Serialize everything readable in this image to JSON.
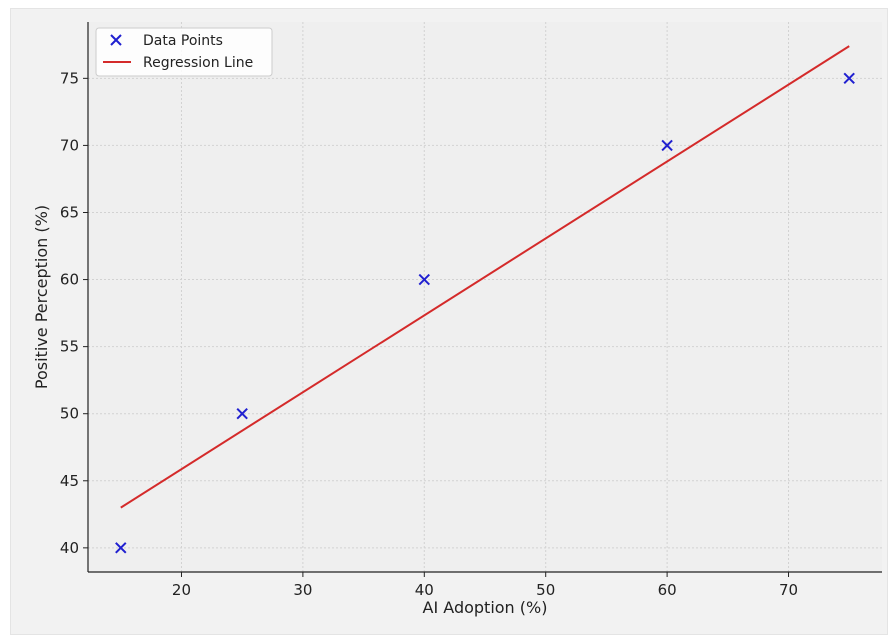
{
  "chart_data": {
    "type": "scatter",
    "title": "",
    "xlabel": "AI Adoption (%)",
    "ylabel": "Positive Perception (%)",
    "xlim": [
      12.3,
      77.7
    ],
    "ylim": [
      38.2,
      79.2
    ],
    "xticks": [
      20,
      30,
      40,
      50,
      60,
      70
    ],
    "yticks": [
      40,
      45,
      50,
      55,
      60,
      65,
      70,
      75
    ],
    "grid": true,
    "legend_position": "top-left",
    "series": [
      {
        "name": "Data Points",
        "kind": "scatter",
        "marker": "x",
        "color": "#2020d0",
        "x": [
          15,
          25,
          40,
          60,
          75
        ],
        "y": [
          40,
          50,
          60,
          70,
          75
        ]
      },
      {
        "name": "Regression Line",
        "kind": "line",
        "color": "#d42a2a",
        "x": [
          15,
          75
        ],
        "y": [
          43.0,
          77.4
        ]
      }
    ]
  }
}
